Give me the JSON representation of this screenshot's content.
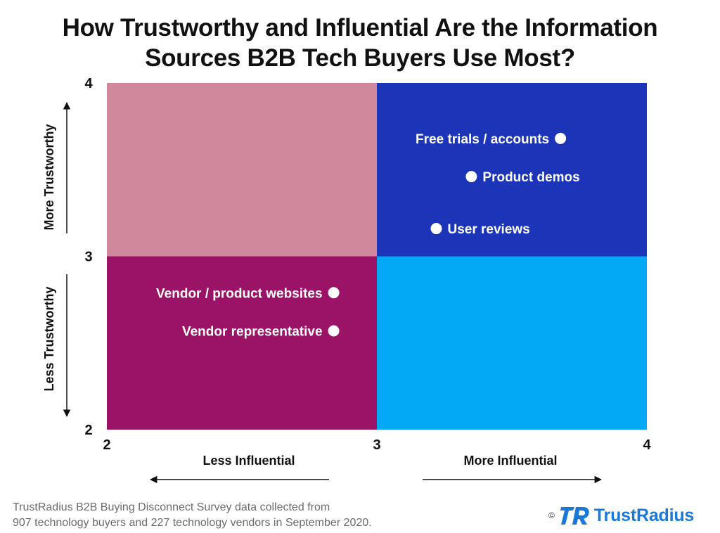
{
  "title_lines": [
    "How Trustworthy and Influential Are the Information",
    "Sources B2B Tech Buyers Use Most?"
  ],
  "chart_data": {
    "type": "scatter",
    "title": "How Trustworthy and Influential Are the Information Sources B2B Tech Buyers Use Most?",
    "xlim": [
      2,
      4
    ],
    "ylim": [
      2,
      4
    ],
    "x_ticks": [
      "2",
      "3",
      "4"
    ],
    "y_ticks": [
      "2",
      "3",
      "4"
    ],
    "x_axis_labels": {
      "low": "Less Influential",
      "high": "More Influential"
    },
    "y_axis_labels": {
      "low": "Less Trustworthy",
      "high": "More Trustworthy"
    },
    "quadrants": [
      {
        "x": [
          2,
          3
        ],
        "y": [
          3,
          4
        ],
        "color": "#d0899c"
      },
      {
        "x": [
          3,
          4
        ],
        "y": [
          3,
          4
        ],
        "color": "#1b34b8"
      },
      {
        "x": [
          2,
          3
        ],
        "y": [
          2,
          3
        ],
        "color": "#9b1366"
      },
      {
        "x": [
          3,
          4
        ],
        "y": [
          2,
          3
        ],
        "color": "#03a9f4"
      }
    ],
    "points": [
      {
        "label": "Free trials / accounts",
        "x": 3.68,
        "y": 3.68,
        "label_side": "left"
      },
      {
        "label": "Product demos",
        "x": 3.35,
        "y": 3.46,
        "label_side": "right"
      },
      {
        "label": "User reviews",
        "x": 3.22,
        "y": 3.16,
        "label_side": "right"
      },
      {
        "label": "Vendor / product websites",
        "x": 2.84,
        "y": 2.79,
        "label_side": "left"
      },
      {
        "label": "Vendor representative",
        "x": 2.84,
        "y": 2.57,
        "label_side": "left"
      }
    ],
    "grid": false,
    "legend": "none"
  },
  "source_lines": [
    "TrustRadius B2B Buying Disconnect Survey data collected from",
    "907 technology buyers and 227 technology vendors in September 2020."
  ],
  "brand": {
    "copyright": "©",
    "name": "TrustRadius",
    "color": "#1a78d6"
  }
}
